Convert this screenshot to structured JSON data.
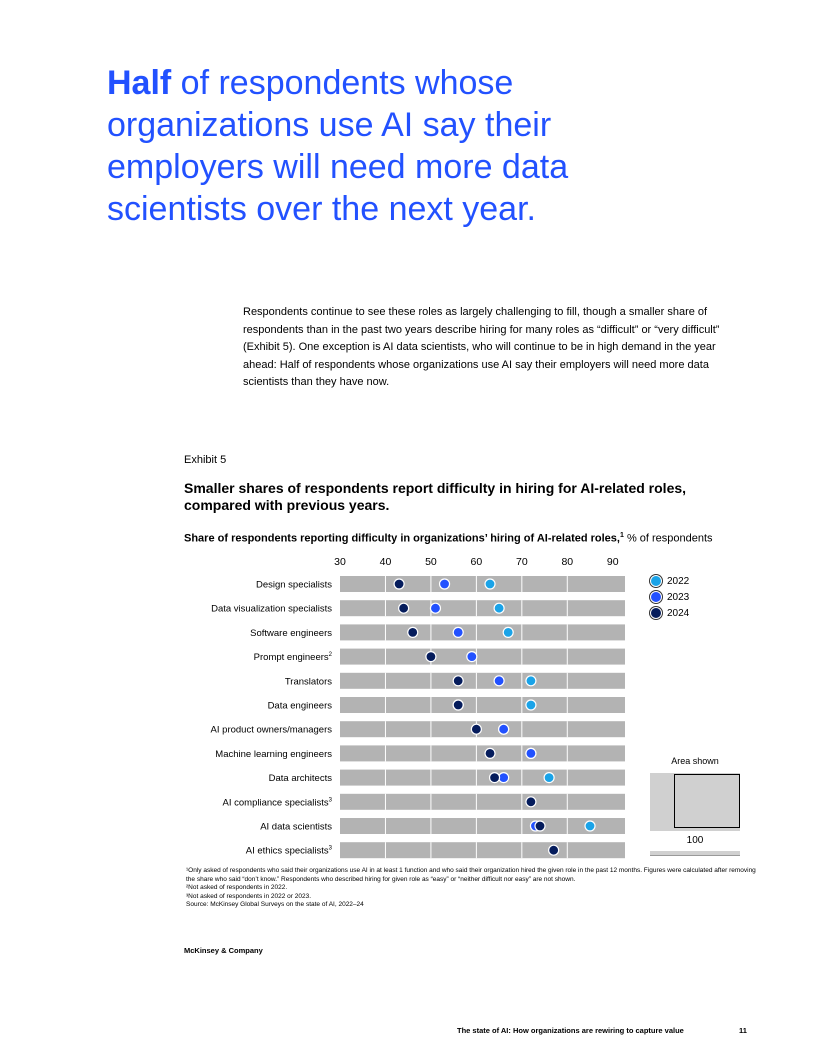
{
  "headline": {
    "bold": "Half",
    "rest": " of respondents whose organizations use AI say their employers will need more data scientists over the next year."
  },
  "body_text": "Respondents continue to see these roles as largely challenging to fill, though a smaller share of respondents than in the past two years describe hiring for many roles as “difficult” or “very difficult” (Exhibit 5). One exception is AI data scientists, who will continue to be in high demand in the year ahead: Half of respondents whose organizations use AI say their employers will need more data scientists than they have now.",
  "exhibit": {
    "label": "Exhibit 5",
    "title": "Smaller shares of respondents report difficulty in hiring for AI-related roles, compared with previous years.",
    "subtitle_bold": "Share of respondents reporting difficulty in organizations’ hiring of AI-related roles,",
    "subtitle_sup": "1",
    "subtitle_rest": " % of respondents"
  },
  "colors": {
    "headline": "#2251ff",
    "y2022": "#1aa3e8",
    "y2023": "#2251ff",
    "y2024": "#051c5c",
    "bar": "#b3b3b3"
  },
  "chart_data": {
    "type": "scatter",
    "title": "Smaller shares of respondents report difficulty in hiring for AI-related roles, compared with previous years.",
    "xlabel": "% of respondents",
    "xlim": [
      30,
      90
    ],
    "xticks": [
      "30",
      "40",
      "50",
      "60",
      "70",
      "80",
      "90"
    ],
    "categories": [
      "Design specialists",
      "Data visualization specialists",
      "Software engineers",
      "Prompt engineers",
      "Translators",
      "Data engineers",
      "AI product owners/managers",
      "Machine learning engineers",
      "Data architects",
      "AI compliance specialists",
      "AI data scientists",
      "AI ethics specialists"
    ],
    "category_notes": [
      "",
      "",
      "",
      "2",
      "",
      "",
      "",
      "",
      "",
      "3",
      "",
      "3"
    ],
    "series": [
      {
        "name": "2022",
        "values": [
          63,
          65,
          67,
          null,
          72,
          72,
          66,
          72,
          76,
          null,
          85,
          null
        ]
      },
      {
        "name": "2023",
        "values": [
          53,
          51,
          56,
          59,
          65,
          56,
          66,
          72,
          66,
          null,
          73,
          null
        ]
      },
      {
        "name": "2024",
        "values": [
          43,
          44,
          46,
          50,
          56,
          56,
          60,
          63,
          64,
          72,
          74,
          77
        ]
      }
    ],
    "legend_position": "right"
  },
  "area_shown": {
    "label": "Area shown",
    "value": "100"
  },
  "footnotes": [
    "¹Only asked of respondents who said their organizations use AI in at least 1 function and who said their organization hired the given role in the past 12 months. Figures were calculated after removing the share who said “don’t know.” Respondents who described hiring for given role as “easy” or “neither difficult nor easy” are not shown.",
    "²Not asked of respondents in 2022.",
    "³Not asked of respondents in 2022 or 2023.",
    "Source: McKinsey Global Surveys on the state of AI, 2022–24"
  ],
  "brand": "McKinsey & Company",
  "footer": {
    "title": "The state of AI: How organizations are rewiring to capture value",
    "page": "11"
  }
}
